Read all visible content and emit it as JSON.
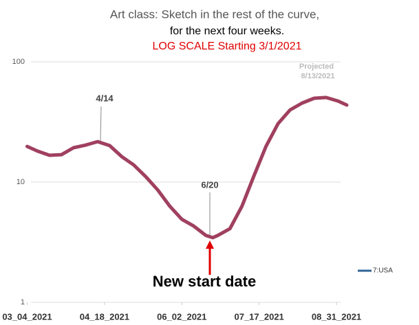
{
  "chart_data": {
    "type": "line",
    "title": [
      "Art class:  Sketch in the rest of the curve,",
      "for the next four weeks.",
      "LOG SCALE Starting 3/1/2021"
    ],
    "projected_label": [
      "Projected",
      "8/13/2021"
    ],
    "annotations": [
      "4/14",
      "6/20",
      "New start date"
    ],
    "x": [
      "2021-03-04",
      "2021-03-10",
      "2021-03-17",
      "2021-03-24",
      "2021-03-31",
      "2021-04-07",
      "2021-04-14",
      "2021-04-21",
      "2021-04-28",
      "2021-05-05",
      "2021-05-12",
      "2021-05-19",
      "2021-05-26",
      "2021-06-02",
      "2021-06-09",
      "2021-06-16",
      "2021-06-20",
      "2021-06-23",
      "2021-06-30",
      "2021-07-07",
      "2021-07-14",
      "2021-07-21",
      "2021-07-28",
      "2021-08-04",
      "2021-08-11",
      "2021-08-18",
      "2021-08-25",
      "2021-09-01",
      "2021-09-06"
    ],
    "series": [
      {
        "name": "7:USA",
        "color": "#a0405f",
        "legend_color": "#2f6394",
        "values": [
          19.8,
          18.1,
          16.7,
          16.9,
          19.3,
          20.3,
          21.7,
          20.1,
          16.3,
          13.9,
          11.1,
          8.6,
          6.3,
          4.9,
          4.3,
          3.6,
          3.45,
          3.6,
          4.1,
          6.3,
          11.3,
          19.8,
          30.6,
          39.8,
          45.4,
          49.8,
          50.5,
          47.2,
          43.7
        ]
      }
    ],
    "xlim": [
      "2021-03-03",
      "2021-09-10"
    ],
    "xticks": [
      {
        "value": "2021-03-04",
        "label": "03_04_2021"
      },
      {
        "value": "2021-04-18",
        "label": "04_18_2021"
      },
      {
        "value": "2021-06-02",
        "label": "06_02_2021"
      },
      {
        "value": "2021-07-17",
        "label": "07_17_2021"
      },
      {
        "value": "2021-08-31",
        "label": "08_31_2021"
      }
    ],
    "ylim": [
      1,
      100
    ],
    "yticks": [
      1,
      10,
      100
    ],
    "log_scale": true,
    "grid": true,
    "legend": "right"
  }
}
